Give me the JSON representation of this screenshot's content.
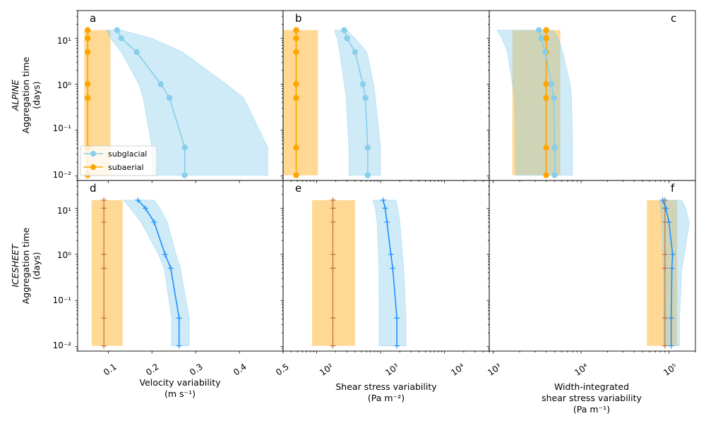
{
  "figure": {
    "row_labels": [
      {
        "name": "ALPINE",
        "sub1": "Aggregation time",
        "sub2": "(days)"
      },
      {
        "name": "ICESHEET",
        "sub1": "Aggregation time",
        "sub2": "(days)"
      }
    ],
    "col_labels": [
      [
        "Velocity variability",
        "(m s⁻¹)"
      ],
      [
        "Shear stress variability",
        "(Pa m⁻²)"
      ],
      [
        "Width-integrated",
        "shear stress variability",
        "(Pa m⁻¹)"
      ]
    ],
    "legend": {
      "subglacial": "subglacial",
      "subaerial": "subaerial"
    },
    "y_ticks": [
      "10⁻²",
      "10⁻¹",
      "10⁰",
      "10¹"
    ],
    "x_ticks": [
      [
        "0.1",
        "0.2",
        "0.3",
        "0.4",
        "0.5"
      ],
      [
        "10²",
        "10³",
        "10⁴"
      ],
      [
        "10³",
        "10⁴",
        "10⁵"
      ]
    ]
  },
  "chart_data": {
    "type": "line",
    "colors": {
      "subglacial_alpine": "#87ceeb",
      "subglacial_alpine_band": "#87ceeb",
      "subaerial": "#ffa500",
      "subaerial_band": "#ffa500",
      "subglacial_icesheet": "#1e90ff",
      "subaerial_icesheet": "#c07040"
    },
    "y_scale": "log",
    "ylim": [
      0.008,
      40
    ],
    "aggregation_days": [
      15,
      10,
      5,
      1,
      0.5,
      0.0417,
      0.0104
    ],
    "panels": [
      {
        "letter": "a",
        "row": "ALPINE",
        "xlabel": "Velocity variability (m s⁻¹)",
        "x_scale": "linear",
        "xlim": [
          0.03,
          0.5
        ],
        "subglacial": {
          "y": [
            15,
            10,
            5,
            1,
            0.5,
            0.0417,
            0.0104
          ],
          "x": [
            0.12,
            0.13,
            0.165,
            0.22,
            0.24,
            0.275,
            0.275
          ],
          "band_lo": [
            0.095,
            0.105,
            0.13,
            0.17,
            0.18,
            0.2,
            0.2
          ],
          "band_hi": [
            0.13,
            0.2,
            0.27,
            0.37,
            0.41,
            0.465,
            0.465
          ]
        },
        "subaerial": {
          "y": [
            15,
            10,
            5,
            1,
            0.5,
            0.0417,
            0.0104
          ],
          "x": [
            0.053,
            0.053,
            0.053,
            0.053,
            0.053,
            0.053,
            0.053
          ],
          "band_lo": 0.045,
          "band_hi": 0.105
        }
      },
      {
        "letter": "b",
        "row": "ALPINE",
        "xlabel": "Shear stress variability (Pa m⁻²)",
        "x_scale": "log",
        "xlim": [
          30,
          50000
        ],
        "subglacial": {
          "y": [
            15,
            10,
            5,
            1,
            0.5,
            0.0417,
            0.0104
          ],
          "x": [
            270,
            300,
            400,
            530,
            580,
            630,
            630
          ],
          "band_lo": [
            190,
            210,
            230,
            270,
            290,
            320,
            320
          ],
          "band_hi": [
            300,
            400,
            610,
            780,
            830,
            1000,
            1000
          ]
        },
        "subaerial": {
          "y": [
            15,
            10,
            5,
            1,
            0.5,
            0.0417,
            0.0104
          ],
          "x": [
            48,
            48,
            48,
            48,
            48,
            48,
            48
          ],
          "band_lo": 30,
          "band_hi": 105
        }
      },
      {
        "letter": "c",
        "row": "ALPINE",
        "xlabel": "Width-integrated shear stress variability (Pa m⁻¹)",
        "x_scale": "log",
        "xlim": [
          900,
          200000
        ],
        "subglacial": {
          "y": [
            15,
            10,
            5,
            1,
            0.5,
            0.0417,
            0.0104
          ],
          "x": [
            3300,
            3500,
            3900,
            4600,
            4900,
            5000,
            5000
          ],
          "band_lo": [
            1100,
            1250,
            1450,
            1650,
            1750,
            1800,
            1800
          ],
          "band_hi": [
            4800,
            5500,
            6200,
            7500,
            7800,
            8000,
            8000
          ]
        },
        "subaerial": {
          "y": [
            15,
            10,
            5,
            1,
            0.5,
            0.0417,
            0.0104
          ],
          "x": [
            4000,
            4000,
            4000,
            4000,
            4000,
            4000,
            4000
          ],
          "band_lo": 1650,
          "band_hi": 5800
        }
      },
      {
        "letter": "d",
        "row": "ICESHEET",
        "xlabel": "Velocity variability (m s⁻¹)",
        "x_scale": "linear",
        "xlim": [
          0.03,
          0.5
        ],
        "subglacial": {
          "y": [
            15,
            10,
            5,
            1,
            0.5,
            0.0417,
            0.0104
          ],
          "x": [
            0.168,
            0.185,
            0.205,
            0.23,
            0.243,
            0.262,
            0.262
          ],
          "band_lo": [
            0.135,
            0.15,
            0.175,
            0.215,
            0.228,
            0.245,
            0.245
          ],
          "band_hi": [
            0.205,
            0.218,
            0.235,
            0.255,
            0.265,
            0.285,
            0.285
          ]
        },
        "subaerial": {
          "y": [
            15,
            10,
            5,
            1,
            0.5,
            0.0417,
            0.0104
          ],
          "x": [
            0.09,
            0.09,
            0.09,
            0.09,
            0.09,
            0.09,
            0.09
          ],
          "band_lo": 0.062,
          "band_hi": 0.133
        }
      },
      {
        "letter": "e",
        "row": "ICESHEET",
        "xlabel": "Shear stress variability (Pa m⁻²)",
        "x_scale": "log",
        "xlim": [
          30,
          50000
        ],
        "subglacial": {
          "y": [
            15,
            10,
            5,
            1,
            0.5,
            0.0417,
            0.0104
          ],
          "x": [
            1100,
            1180,
            1260,
            1450,
            1550,
            1800,
            1800
          ],
          "band_lo": [
            750,
            830,
            880,
            930,
            940,
            950,
            950
          ],
          "band_hi": [
            1750,
            1850,
            2000,
            2200,
            2300,
            2500,
            2500
          ]
        },
        "subaerial": {
          "y": [
            15,
            10,
            5,
            1,
            0.5,
            0.0417,
            0.0104
          ],
          "x": [
            180,
            180,
            180,
            180,
            180,
            180,
            180
          ],
          "band_lo": 85,
          "band_hi": 400
        }
      },
      {
        "letter": "f",
        "row": "ICESHEET",
        "xlabel": "Width-integrated shear stress variability (Pa m⁻¹)",
        "x_scale": "log",
        "xlim": [
          900,
          200000
        ],
        "subglacial": {
          "y": [
            15,
            10,
            5,
            1,
            0.5,
            0.0417,
            0.0104
          ],
          "x": [
            85000,
            92000,
            100000,
            110000,
            108000,
            106000,
            106000
          ],
          "band_lo": [
            78000,
            80000,
            83000,
            85000,
            86000,
            86000,
            86000
          ],
          "band_hi": [
            140000,
            155000,
            170000,
            150000,
            140000,
            132000,
            132000
          ]
        },
        "subaerial": {
          "y": [
            15,
            10,
            5,
            1,
            0.5,
            0.0417,
            0.0104
          ],
          "x": [
            90000,
            90000,
            90000,
            90000,
            90000,
            90000,
            90000
          ],
          "band_lo": 56000,
          "band_hi": 124000
        }
      }
    ]
  }
}
